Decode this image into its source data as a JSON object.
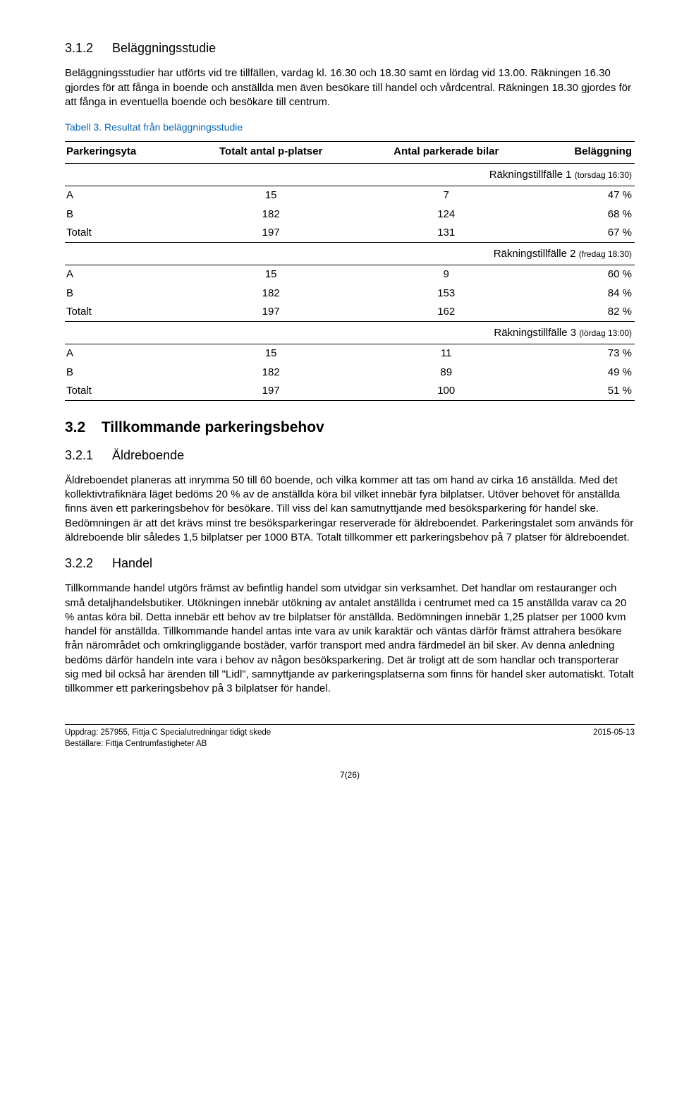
{
  "sec312": {
    "number": "3.1.2",
    "title": "Beläggningsstudie",
    "para": "Beläggningsstudier har utförts vid tre tillfällen, vardag kl. 16.30 och 18.30 samt en lördag vid 13.00. Räkningen 16.30 gjordes för att fånga in boende och anställda men även besökare till handel och vårdcentral. Räkningen 18.30 gjordes för att fånga in eventuella boende och besökare till centrum."
  },
  "table": {
    "caption": "Tabell 3. Resultat från beläggningsstudie",
    "headers": [
      "Parkeringsyta",
      "Totalt antal p-platser",
      "Antal parkerade bilar",
      "Beläggning"
    ],
    "sections": [
      {
        "title": "Räkningstillfälle 1 (torsdag 16:30)",
        "rows": [
          {
            "label": "A",
            "p": "15",
            "parked": "7",
            "pct": "47 %"
          },
          {
            "label": "B",
            "p": "182",
            "parked": "124",
            "pct": "68 %"
          },
          {
            "label": "Totalt",
            "p": "197",
            "parked": "131",
            "pct": "67 %"
          }
        ]
      },
      {
        "title": "Räkningstillfälle 2 (fredag 18:30)",
        "rows": [
          {
            "label": "A",
            "p": "15",
            "parked": "9",
            "pct": "60 %"
          },
          {
            "label": "B",
            "p": "182",
            "parked": "153",
            "pct": "84 %"
          },
          {
            "label": "Totalt",
            "p": "197",
            "parked": "162",
            "pct": "82 %"
          }
        ]
      },
      {
        "title": "Räkningstillfälle 3 (lördag 13:00)",
        "rows": [
          {
            "label": "A",
            "p": "15",
            "parked": "11",
            "pct": "73 %"
          },
          {
            "label": "B",
            "p": "182",
            "parked": "89",
            "pct": "49 %"
          },
          {
            "label": "Totalt",
            "p": "197",
            "parked": "100",
            "pct": "51 %"
          }
        ]
      }
    ]
  },
  "sec32": {
    "number": "3.2",
    "title": "Tillkommande parkeringsbehov"
  },
  "sec321": {
    "number": "3.2.1",
    "title": "Äldreboende",
    "para": "Äldreboendet planeras att inrymma 50 till 60 boende, och vilka kommer att tas om hand av cirka 16 anställda. Med det kollektivtrafiknära läget bedöms 20 % av de anställda köra bil vilket innebär fyra bilplatser. Utöver behovet för anställda finns även ett parkeringsbehov för besökare. Till viss del kan samutnyttjande med besöksparkering för handel ske. Bedömningen är att det krävs minst tre besöksparkeringar reserverade för äldreboendet. Parkeringstalet som används för äldreboende blir således 1,5 bilplatser per 1000 BTA. Totalt tillkommer ett parkeringsbehov på 7 platser för äldreboendet."
  },
  "sec322": {
    "number": "3.2.2",
    "title": "Handel",
    "para": "Tillkommande handel utgörs främst av befintlig handel som utvidgar sin verksamhet. Det handlar om restauranger och små detaljhandelsbutiker. Utökningen innebär utökning av antalet anställda i centrumet med ca 15 anställda varav ca 20 % antas köra bil. Detta innebär ett behov av tre bilplatser för anställda. Bedömningen innebär 1,25 platser per 1000 kvm handel för anställda. Tillkommande handel antas inte vara av unik karaktär och väntas därför främst attrahera besökare från närområdet och omkringliggande bostäder, varför transport med andra färdmedel än bil sker. Av denna anledning bedöms därför handeln inte vara i behov av någon besöksparkering. Det är troligt att de som handlar och transporterar sig med bil också har ärenden till \"Lidl\", samnyttjande av parkeringsplatserna som finns för handel sker automatiskt. Totalt tillkommer ett parkeringsbehov på 3 bilplatser för handel."
  },
  "footer": {
    "left1": "Uppdrag: 257955,  Fittja C Specialutredningar tidigt skede",
    "left2": "Beställare: Fittja Centrumfastigheter AB",
    "right": "2015-05-13",
    "page": "7(26)"
  }
}
